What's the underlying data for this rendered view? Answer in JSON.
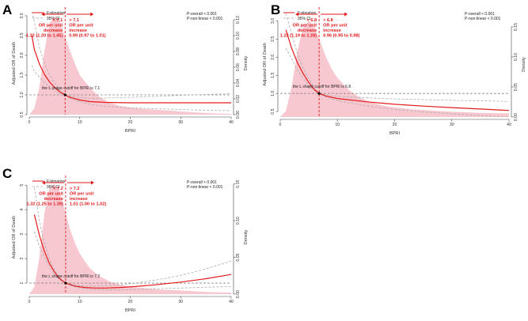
{
  "colors": {
    "curve": "#e31a1c",
    "ci": "#aaaaaa",
    "density": "#f7c2cc",
    "reference": "#888888",
    "cutoff": "#e31a1c"
  },
  "chart_data": [
    {
      "panel": "A",
      "type": "line",
      "xlabel": "BPRI",
      "ylabel": "Adjusted OR of Death",
      "y2label": "Density",
      "xlim": [
        0,
        40
      ],
      "ylim": [
        0.5,
        3.1
      ],
      "y2lim": [
        0,
        0.13
      ],
      "x_ticks": [
        0,
        10,
        20,
        30,
        40
      ],
      "y_ticks": [
        0.5,
        1.0,
        1.5,
        2.0,
        2.5,
        3.0
      ],
      "y_tick_labels": [
        "0.5",
        "1.0",
        "1.5",
        "2.0",
        "2.5",
        "3.0"
      ],
      "y2_ticks": [
        0,
        0.02,
        0.04,
        0.06,
        0.08,
        0.1,
        0.12
      ],
      "y2_tick_labels": [
        "0.00",
        "0.02",
        "0.04",
        "0.06",
        "0.08",
        "0.10",
        "0.12"
      ],
      "legend": [
        "Estimation",
        "95% CI"
      ],
      "p_overall": "P-overall < 0.001",
      "p_nonlinear": "P-non-linear < 0.001",
      "cutoff": 7.1,
      "cutoff_text": "the L shape cutoff for BPRI is 7.1",
      "left_arrow_label": "< 7.1",
      "right_arrow_label": "> 7.1",
      "left_desc": [
        "OR per unit",
        "decrease"
      ],
      "right_desc": [
        "OR per unit",
        "increase"
      ],
      "left_or": "1.32 (1.20 to 1.45)",
      "right_or": "0.99 (0.97 to 1.01)",
      "estimate": {
        "x": [
          0.5,
          1,
          2,
          3,
          4,
          5,
          6,
          7.1,
          8,
          10,
          12,
          15,
          20,
          25,
          30,
          35,
          40
        ],
        "y": [
          2.5,
          2.15,
          1.78,
          1.52,
          1.33,
          1.19,
          1.08,
          1.0,
          0.94,
          0.87,
          0.83,
          0.81,
          0.8,
          0.8,
          0.8,
          0.8,
          0.8
        ]
      },
      "ci_lower": {
        "x": [
          0.5,
          1,
          2,
          3,
          4,
          5,
          6,
          7.1,
          8,
          10,
          12,
          15,
          20,
          25,
          30,
          35,
          40
        ],
        "y": [
          1.75,
          1.6,
          1.45,
          1.32,
          1.2,
          1.1,
          1.04,
          1.0,
          0.92,
          0.82,
          0.76,
          0.71,
          0.67,
          0.65,
          0.63,
          0.61,
          0.6
        ]
      },
      "ci_upper": {
        "x": [
          0.5,
          1,
          2,
          3,
          4,
          5,
          6,
          7.1,
          8,
          10,
          12,
          15,
          20,
          25,
          30,
          35,
          40
        ],
        "y": [
          3.1,
          2.85,
          2.2,
          1.8,
          1.5,
          1.3,
          1.13,
          1.0,
          0.97,
          0.93,
          0.91,
          0.92,
          0.94,
          0.96,
          0.99,
          1.01,
          1.03
        ]
      },
      "density": {
        "x": [
          0,
          1,
          2,
          3,
          4,
          5,
          6,
          7,
          8,
          9,
          10,
          12,
          14,
          16,
          18,
          20,
          23,
          26,
          30,
          35,
          40
        ],
        "y": [
          0,
          0.008,
          0.035,
          0.08,
          0.115,
          0.125,
          0.118,
          0.1,
          0.082,
          0.065,
          0.05,
          0.034,
          0.022,
          0.015,
          0.011,
          0.009,
          0.007,
          0.006,
          0.004,
          0.002,
          0.001
        ]
      }
    },
    {
      "panel": "B",
      "type": "line",
      "xlabel": "BPRI",
      "ylabel": "Adjusted OR of Death",
      "y2label": "Density",
      "xlim": [
        0,
        40
      ],
      "ylim": [
        0.35,
        3.25
      ],
      "y2lim": [
        0,
        0.175
      ],
      "x_ticks": [
        0,
        10,
        20,
        30,
        40
      ],
      "y_ticks": [
        0.5,
        1.0,
        1.5,
        2.0,
        2.5,
        3.0
      ],
      "y_tick_labels": [
        "0.5",
        "1.0",
        "1.5",
        "2.0",
        "2.5",
        "3.0"
      ],
      "y2_ticks": [
        0,
        0.05,
        0.1,
        0.15
      ],
      "y2_tick_labels": [
        "0.00",
        "0.05",
        "0.10",
        "0.15"
      ],
      "legend": [
        "Estimation",
        "95% CI"
      ],
      "p_overall": "P-overall < 0.001",
      "p_nonlinear": "P-non-linear < 0.001",
      "cutoff": 6.8,
      "cutoff_text": "the L shape cutoff for BPRI is 6.8",
      "left_arrow_label": "< 6.8",
      "right_arrow_label": "> 6.8",
      "left_desc": [
        "OR per unit",
        "decrease"
      ],
      "right_desc": [
        "OR per unit",
        "increase"
      ],
      "left_or": "1.23 (1.19 to 1.28)",
      "right_or": "0.96 (0.95 to 0.98)",
      "estimate": {
        "x": [
          1,
          2,
          3,
          4,
          5,
          6,
          6.8,
          8,
          10,
          15,
          20,
          25,
          30,
          35,
          40
        ],
        "y": [
          2.75,
          2.25,
          1.85,
          1.55,
          1.3,
          1.1,
          1.0,
          0.93,
          0.86,
          0.77,
          0.7,
          0.65,
          0.61,
          0.57,
          0.53
        ]
      },
      "ci_lower": {
        "x": [
          1,
          2,
          3,
          4,
          5,
          6,
          6.8,
          8,
          10,
          15,
          20,
          25,
          30,
          35,
          40
        ],
        "y": [
          2.25,
          1.95,
          1.65,
          1.42,
          1.22,
          1.07,
          1.0,
          0.9,
          0.8,
          0.66,
          0.56,
          0.49,
          0.44,
          0.39,
          0.35
        ]
      },
      "ci_upper": {
        "x": [
          1,
          2,
          3,
          4,
          5,
          6,
          6.8,
          8,
          10,
          15,
          20,
          25,
          30,
          35,
          40
        ],
        "y": [
          3.2,
          2.65,
          2.1,
          1.7,
          1.4,
          1.15,
          1.0,
          0.96,
          0.92,
          0.88,
          0.85,
          0.83,
          0.81,
          0.8,
          0.78
        ]
      },
      "density": {
        "x": [
          0,
          1,
          2,
          3,
          4,
          5,
          6,
          7,
          8,
          9,
          10,
          12,
          14,
          16,
          18,
          20,
          23,
          26,
          30,
          35,
          40
        ],
        "y": [
          0,
          0.01,
          0.05,
          0.11,
          0.15,
          0.16,
          0.15,
          0.125,
          0.1,
          0.08,
          0.065,
          0.045,
          0.032,
          0.024,
          0.019,
          0.016,
          0.013,
          0.011,
          0.009,
          0.007,
          0.006
        ]
      }
    },
    {
      "panel": "C",
      "type": "line",
      "xlabel": "BPRI",
      "ylabel": "Adjusted OR of Death",
      "y2label": "Density",
      "xlim": [
        0,
        40
      ],
      "ylim": [
        0.55,
        5.2
      ],
      "y2lim": [
        0,
        0.155
      ],
      "x_ticks": [
        0,
        10,
        20,
        30,
        40
      ],
      "y_ticks": [
        1,
        2,
        3,
        4,
        5
      ],
      "y_tick_labels": [
        "1",
        "2",
        "3",
        "4",
        "5"
      ],
      "y2_ticks": [
        0,
        0.05,
        0.1,
        0.15
      ],
      "y2_tick_labels": [
        "0.00",
        "0.05",
        "0.10",
        "0.15"
      ],
      "legend": [
        "Estimation",
        "95% CI"
      ],
      "p_overall": "P-overall < 0.001",
      "p_nonlinear": "P-non-linear < 0.001",
      "cutoff": 7.2,
      "cutoff_text": "the L shape cutoff for BPRI is 7.2",
      "left_arrow_label": "< 7.2",
      "right_arrow_label": "> 7.2",
      "left_desc": [
        "OR per unit",
        "decrease"
      ],
      "right_desc": [
        "OR per unit",
        "increase"
      ],
      "left_or": "1.32 (1.25 to 1.39)",
      "right_or": "1.01 (1.00 to 1.02)",
      "estimate": {
        "x": [
          1,
          2,
          3,
          4,
          5,
          6,
          7.2,
          9,
          11,
          13,
          15,
          18,
          21,
          25,
          30,
          35,
          40
        ],
        "y": [
          3.8,
          2.95,
          2.3,
          1.8,
          1.45,
          1.18,
          1.0,
          0.88,
          0.82,
          0.8,
          0.8,
          0.82,
          0.86,
          0.93,
          1.04,
          1.18,
          1.35
        ]
      },
      "ci_lower": {
        "x": [
          1,
          2,
          3,
          4,
          5,
          6,
          7.2,
          9,
          11,
          13,
          15,
          18,
          21,
          25,
          30,
          35,
          40
        ],
        "y": [
          3.1,
          2.5,
          2.05,
          1.65,
          1.36,
          1.14,
          1.0,
          0.85,
          0.77,
          0.73,
          0.72,
          0.72,
          0.74,
          0.77,
          0.8,
          0.83,
          0.86
        ]
      },
      "ci_upper": {
        "x": [
          1,
          2,
          3,
          4,
          5,
          6,
          7.2,
          9,
          11,
          13,
          15,
          18,
          21,
          25,
          30,
          35,
          40
        ],
        "y": [
          4.9,
          3.55,
          2.6,
          1.98,
          1.55,
          1.22,
          1.0,
          0.92,
          0.88,
          0.88,
          0.9,
          0.93,
          1.0,
          1.12,
          1.32,
          1.58,
          1.9
        ]
      },
      "density": {
        "x": [
          0,
          1,
          2,
          3,
          4,
          5,
          6,
          7,
          8,
          9,
          10,
          12,
          14,
          16,
          18,
          20,
          23,
          26,
          30,
          35,
          40
        ],
        "y": [
          0,
          0.01,
          0.05,
          0.11,
          0.145,
          0.15,
          0.14,
          0.115,
          0.09,
          0.07,
          0.055,
          0.035,
          0.024,
          0.017,
          0.013,
          0.01,
          0.008,
          0.006,
          0.005,
          0.003,
          0.002
        ]
      }
    }
  ]
}
